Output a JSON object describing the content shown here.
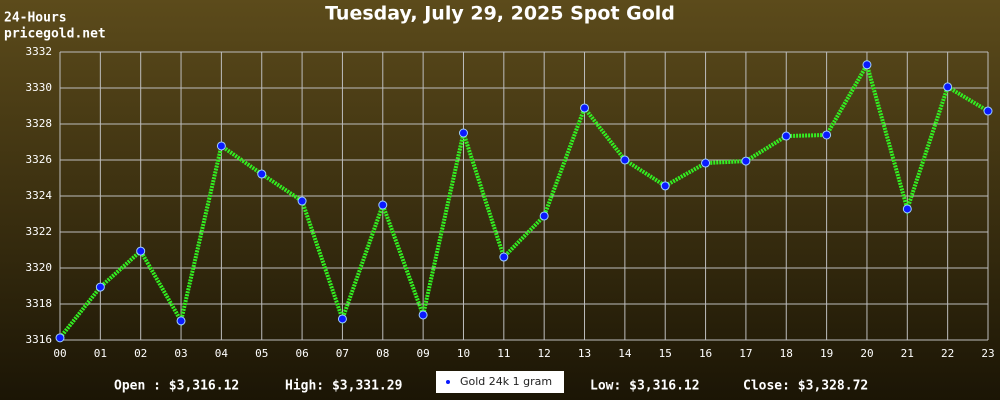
{
  "chart_data": {
    "type": "line",
    "title": "Tuesday, July 29, 2025 Spot Gold",
    "corner_labels": [
      "24-Hours",
      "pricegold.net"
    ],
    "categories": [
      "00",
      "01",
      "02",
      "03",
      "04",
      "05",
      "06",
      "07",
      "08",
      "09",
      "10",
      "11",
      "12",
      "13",
      "14",
      "15",
      "16",
      "17",
      "18",
      "19",
      "20",
      "21",
      "22",
      "23"
    ],
    "series": [
      {
        "name": "Gold 24k 1 gram",
        "color": "#33ee22",
        "marker_color": "#0a1aff",
        "values": [
          3316.12,
          3318.94,
          3320.94,
          3317.06,
          3326.78,
          3325.22,
          3323.72,
          3317.17,
          3323.5,
          3317.39,
          3327.5,
          3320.61,
          3322.89,
          3328.89,
          3326.0,
          3324.56,
          3325.83,
          3325.94,
          3327.33,
          3327.39,
          3331.29,
          3323.28,
          3330.06,
          3328.72
        ]
      }
    ],
    "ylim": [
      3316,
      3332
    ],
    "yticks": [
      3316,
      3318,
      3320,
      3322,
      3324,
      3326,
      3328,
      3330,
      3332
    ],
    "grid": true,
    "stats": [
      "Open : $3,316.12",
      "High: $3,331.29",
      "Low: $3,316.12",
      "Close: $3,328.72"
    ]
  }
}
